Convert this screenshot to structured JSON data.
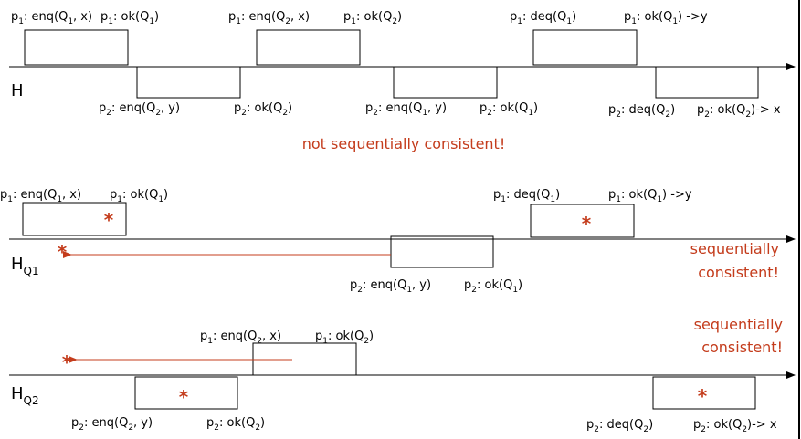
{
  "sections": [
    {
      "name": "H",
      "label": "H",
      "label_sub": "",
      "ops": [
        {
          "id": "h-p1-enq-q1-x",
          "proc": "1",
          "call": "enq(Q",
          "call_sub": "1",
          "call_rest": ", x)",
          "ret": "ok(Q",
          "ret_sub": "1",
          "ret_rest": ")",
          "star": false
        },
        {
          "id": "h-p2-enq-q2-y",
          "proc": "2",
          "call": "enq(Q",
          "call_sub": "2",
          "call_rest": ", y)",
          "ret": "ok(Q",
          "ret_sub": "2",
          "ret_rest": ")",
          "star": false
        },
        {
          "id": "h-p1-enq-q2-x",
          "proc": "1",
          "call": "enq(Q",
          "call_sub": "2",
          "call_rest": ", x)",
          "ret": "ok(Q",
          "ret_sub": "2",
          "ret_rest": ")",
          "star": false
        },
        {
          "id": "h-p2-enq-q1-y",
          "proc": "2",
          "call": "enq(Q",
          "call_sub": "1",
          "call_rest": ", y)",
          "ret": "ok(Q",
          "ret_sub": "1",
          "ret_rest": ")",
          "star": false
        },
        {
          "id": "h-p1-deq-q1",
          "proc": "1",
          "call": "deq(Q",
          "call_sub": "1",
          "call_rest": ")",
          "ret": "ok(Q",
          "ret_sub": "1",
          "ret_rest": ") ->y",
          "star": false
        },
        {
          "id": "h-p2-deq-q2",
          "proc": "2",
          "call": "deq(Q",
          "call_sub": "2",
          "call_rest": ")",
          "ret": "ok(Q",
          "ret_sub": "2",
          "ret_rest": ")-> x",
          "star": false
        }
      ],
      "verdict": [
        "not sequentially consistent!"
      ]
    },
    {
      "name": "HQ1",
      "label": "H",
      "label_sub": "Q1",
      "ops": [
        {
          "id": "hq1-p1-enq-q1-x",
          "proc": "1",
          "call": "enq(Q",
          "call_sub": "1",
          "call_rest": ", x)",
          "ret": "ok(Q",
          "ret_sub": "1",
          "ret_rest": ")",
          "star": true
        },
        {
          "id": "hq1-p2-enq-q1-y",
          "proc": "2",
          "call": "enq(Q",
          "call_sub": "1",
          "call_rest": ", y)",
          "ret": "ok(Q",
          "ret_sub": "1",
          "ret_rest": ")",
          "star": false
        },
        {
          "id": "hq1-p1-deq-q1",
          "proc": "1",
          "call": "deq(Q",
          "call_sub": "1",
          "call_rest": ")",
          "ret": "ok(Q",
          "ret_sub": "1",
          "ret_rest": ") ->y",
          "star": true
        }
      ],
      "verdict": [
        "sequentially",
        "consistent!"
      ]
    },
    {
      "name": "HQ2",
      "label": "H",
      "label_sub": "Q2",
      "ops": [
        {
          "id": "hq2-p1-enq-q2-x",
          "proc": "1",
          "call": "enq(Q",
          "call_sub": "2",
          "call_rest": ", x)",
          "ret": "ok(Q",
          "ret_sub": "2",
          "ret_rest": ")",
          "star": false
        },
        {
          "id": "hq2-p2-enq-q2-y",
          "proc": "2",
          "call": "enq(Q",
          "call_sub": "2",
          "call_rest": ", y)",
          "ret": "ok(Q",
          "ret_sub": "2",
          "ret_rest": ")",
          "star": true
        },
        {
          "id": "hq2-p2-deq-q2",
          "proc": "2",
          "call": "deq(Q",
          "call_sub": "2",
          "call_rest": ")",
          "ret": "ok(Q",
          "ret_sub": "2",
          "ret_rest": ")-> x",
          "star": true
        }
      ],
      "verdict": [
        "sequentially",
        "consistent!"
      ]
    }
  ],
  "process_prefix": "p",
  "star_symbol": "*",
  "colors": {
    "accent": "#c43c1c",
    "line": "#000000"
  }
}
